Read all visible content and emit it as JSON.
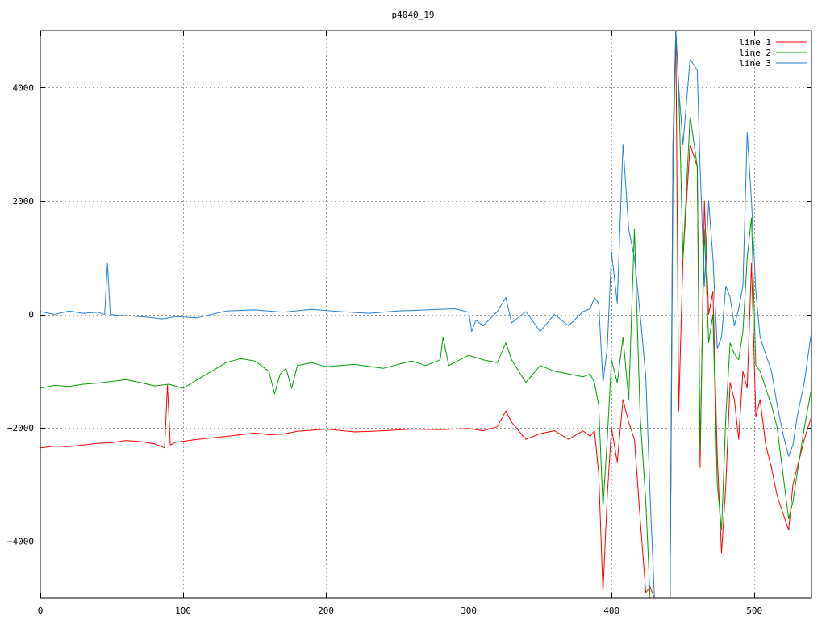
{
  "chart_data": {
    "type": "line",
    "title": "p4040_19",
    "xlabel": "",
    "ylabel": "",
    "xlim": [
      0,
      540
    ],
    "ylim": [
      -5000,
      5000
    ],
    "grid": true,
    "legend_position": "top-right",
    "xticks": [
      0,
      100,
      200,
      300,
      400,
      500
    ],
    "yticks": [
      -4000,
      -2000,
      0,
      2000,
      4000
    ],
    "series": [
      {
        "name": "line 1",
        "color": "#ff0000",
        "x": [
          0,
          10,
          20,
          30,
          40,
          50,
          60,
          70,
          80,
          87,
          89,
          91,
          95,
          110,
          130,
          150,
          160,
          170,
          180,
          200,
          220,
          240,
          260,
          280,
          300,
          310,
          320,
          326,
          330,
          340,
          350,
          360,
          370,
          380,
          385,
          388,
          391,
          394,
          397,
          400,
          404,
          408,
          412,
          416,
          420,
          424,
          427,
          430,
          434,
          438,
          441,
          443,
          445,
          447,
          450,
          455,
          460,
          462,
          465,
          468,
          471,
          474,
          477,
          480,
          483,
          486,
          489,
          492,
          495,
          498,
          501,
          504,
          508,
          512,
          516,
          520,
          524,
          527,
          530,
          535,
          540
        ],
        "y": [
          -2350,
          -2320,
          -2330,
          -2300,
          -2270,
          -2260,
          -2220,
          -2240,
          -2280,
          -2350,
          -1250,
          -2300,
          -2250,
          -2200,
          -2150,
          -2090,
          -2120,
          -2110,
          -2060,
          -2020,
          -2070,
          -2050,
          -2020,
          -2030,
          -2010,
          -2050,
          -1980,
          -1700,
          -1900,
          -2200,
          -2100,
          -2050,
          -2200,
          -2050,
          -2150,
          -2050,
          -2800,
          -4900,
          -3200,
          -2000,
          -2600,
          -1500,
          -1900,
          -2200,
          -3600,
          -4900,
          -4800,
          -5000,
          -5000,
          -5000,
          -5000,
          3000,
          5000,
          -1700,
          1000,
          3000,
          2600,
          -2700,
          2000,
          0,
          400,
          -2500,
          -4200,
          -3000,
          -1200,
          -1500,
          -2200,
          -1000,
          -1300,
          900,
          -1800,
          -1500,
          -2300,
          -2700,
          -3200,
          -3500,
          -3800,
          -3000,
          -2700,
          -2200,
          -1800
        ]
      },
      {
        "name": "line 2",
        "color": "#00a000",
        "x": [
          0,
          10,
          20,
          30,
          40,
          50,
          60,
          70,
          80,
          90,
          100,
          110,
          120,
          130,
          140,
          150,
          160,
          164,
          168,
          172,
          176,
          180,
          190,
          200,
          220,
          240,
          260,
          270,
          280,
          282,
          286,
          300,
          310,
          320,
          326,
          330,
          340,
          350,
          360,
          370,
          380,
          385,
          388,
          391,
          394,
          397,
          400,
          404,
          408,
          412,
          416,
          420,
          424,
          427,
          430,
          434,
          438,
          441,
          443,
          445,
          447,
          450,
          455,
          460,
          462,
          465,
          468,
          471,
          474,
          477,
          480,
          483,
          486,
          489,
          492,
          495,
          498,
          501,
          504,
          508,
          512,
          516,
          520,
          524,
          527,
          530,
          535,
          540
        ],
        "y": [
          -1300,
          -1250,
          -1270,
          -1230,
          -1210,
          -1180,
          -1150,
          -1200,
          -1260,
          -1230,
          -1300,
          -1150,
          -1000,
          -850,
          -780,
          -820,
          -1000,
          -1400,
          -1050,
          -950,
          -1300,
          -900,
          -850,
          -920,
          -880,
          -950,
          -820,
          -900,
          -800,
          -400,
          -900,
          -720,
          -800,
          -850,
          -500,
          -800,
          -1200,
          -900,
          -1000,
          -1050,
          -1100,
          -1050,
          -1200,
          -1600,
          -3400,
          -2200,
          -800,
          -1200,
          -400,
          -1500,
          1500,
          -1800,
          -3300,
          -5000,
          -5000,
          -5000,
          -5000,
          -5000,
          2300,
          5000,
          4000,
          1000,
          3500,
          2600,
          -2400,
          1500,
          -500,
          0,
          -3000,
          -3800,
          -1800,
          -500,
          -700,
          -800,
          -300,
          1000,
          1700,
          -900,
          -1000,
          -1300,
          -1600,
          -2000,
          -2800,
          -3600,
          -3300,
          -2800,
          -2000,
          -1300
        ]
      },
      {
        "name": "line 3",
        "color": "#1f7fd4",
        "x": [
          0,
          10,
          20,
          30,
          40,
          45,
          47,
          49,
          55,
          65,
          75,
          85,
          95,
          110,
          130,
          150,
          170,
          190,
          210,
          230,
          250,
          270,
          290,
          300,
          302,
          305,
          310,
          320,
          326,
          330,
          340,
          350,
          360,
          370,
          380,
          385,
          388,
          391,
          394,
          397,
          400,
          404,
          408,
          412,
          416,
          420,
          424,
          427,
          430,
          434,
          438,
          441,
          443,
          445,
          447,
          450,
          455,
          460,
          462,
          465,
          468,
          471,
          474,
          477,
          480,
          483,
          486,
          489,
          492,
          495,
          498,
          501,
          504,
          508,
          512,
          516,
          520,
          524,
          527,
          530,
          535,
          540
        ],
        "y": [
          50,
          0,
          60,
          20,
          40,
          0,
          900,
          0,
          -20,
          -30,
          -50,
          -80,
          -40,
          -60,
          60,
          80,
          40,
          90,
          50,
          20,
          60,
          80,
          100,
          40,
          -300,
          -100,
          -200,
          50,
          300,
          -150,
          50,
          -300,
          0,
          -200,
          50,
          100,
          300,
          200,
          -1200,
          -600,
          1100,
          200,
          3000,
          1500,
          1000,
          0,
          -1100,
          -3200,
          -5000,
          -5000,
          -5000,
          -5000,
          3000,
          5000,
          4000,
          3000,
          4500,
          4300,
          2600,
          500,
          2000,
          1000,
          -600,
          -400,
          500,
          300,
          -200,
          100,
          500,
          3200,
          2000,
          400,
          -400,
          -700,
          -1000,
          -1600,
          -2100,
          -2500,
          -2300,
          -1800,
          -1200,
          -300
        ]
      }
    ]
  }
}
